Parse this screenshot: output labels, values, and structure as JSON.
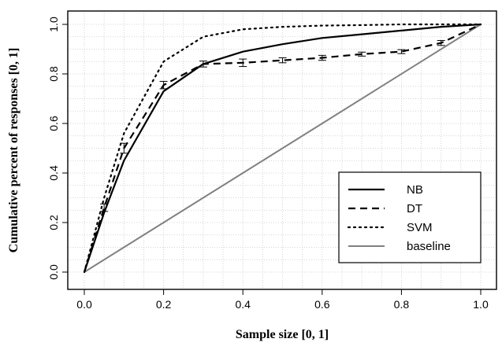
{
  "chart_data": {
    "type": "line",
    "xlabel": "Sample size [0, 1]",
    "ylabel": "Cumulative percent of responses [0, 1]",
    "xlim": [
      0,
      1
    ],
    "ylim": [
      0,
      1
    ],
    "x_ticks": [
      "0.0",
      "0.2",
      "0.4",
      "0.6",
      "0.8",
      "1.0"
    ],
    "y_ticks": [
      "0.0",
      "0.2",
      "0.4",
      "0.6",
      "0.8",
      "1.0"
    ],
    "grid": true,
    "legend_position": "bottom-right",
    "series": [
      {
        "name": "NB",
        "style": "solid",
        "color": "#000000",
        "x": [
          0,
          0.05,
          0.1,
          0.2,
          0.3,
          0.4,
          0.5,
          0.6,
          0.7,
          0.8,
          0.9,
          1.0
        ],
        "y": [
          0,
          0.24,
          0.45,
          0.73,
          0.84,
          0.89,
          0.92,
          0.945,
          0.96,
          0.975,
          0.99,
          1.0
        ]
      },
      {
        "name": "DT",
        "style": "dashed",
        "color": "#000000",
        "x": [
          0,
          0.05,
          0.1,
          0.2,
          0.3,
          0.4,
          0.5,
          0.6,
          0.7,
          0.8,
          0.9,
          1.0
        ],
        "y": [
          0,
          0.26,
          0.5,
          0.755,
          0.84,
          0.845,
          0.855,
          0.865,
          0.88,
          0.89,
          0.925,
          1.0
        ],
        "errors": [
          0,
          0.015,
          0.02,
          0.015,
          0.012,
          0.015,
          0.01,
          0.01,
          0.008,
          0.008,
          0.01,
          0
        ]
      },
      {
        "name": "SVM",
        "style": "dotted",
        "color": "#000000",
        "x": [
          0,
          0.05,
          0.1,
          0.2,
          0.3,
          0.4,
          0.5,
          0.6,
          0.7,
          0.8,
          0.9,
          1.0
        ],
        "y": [
          0,
          0.3,
          0.56,
          0.85,
          0.95,
          0.98,
          0.99,
          0.995,
          0.997,
          1.0,
          1.0,
          1.0
        ]
      },
      {
        "name": "baseline",
        "style": "solid",
        "color": "#808080",
        "x": [
          0,
          1
        ],
        "y": [
          0,
          1
        ]
      }
    ]
  }
}
